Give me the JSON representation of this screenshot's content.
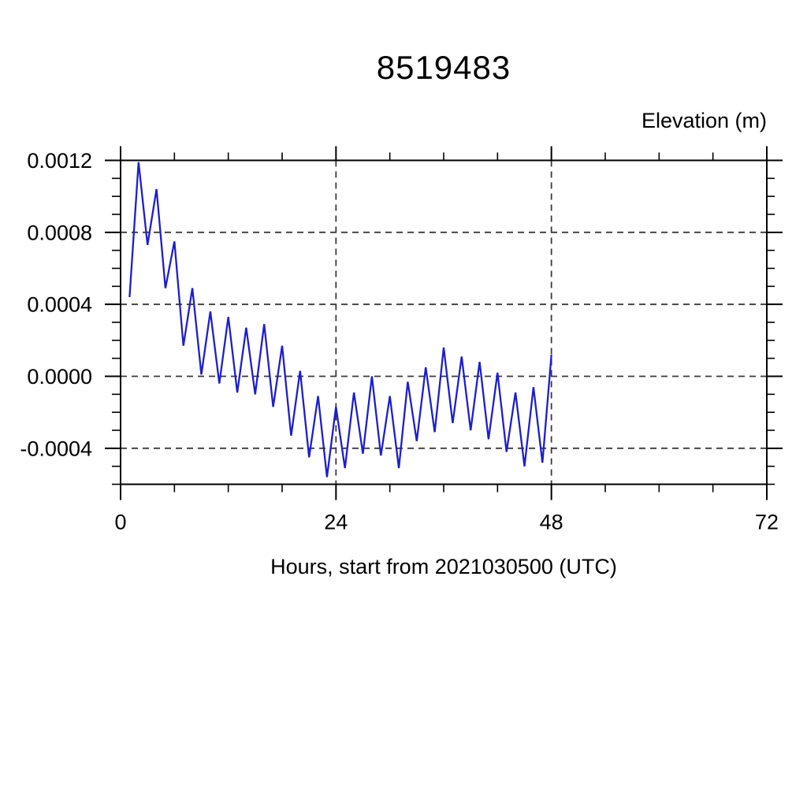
{
  "chart_data": {
    "type": "line",
    "title": "8519483",
    "ylabel": "Elevation (m)",
    "xlabel": "Hours, start from 2021030500 (UTC)",
    "line_color": "#1e1ecd",
    "grid_color": "#3a3a3a",
    "frame_color": "#000000",
    "xlim": [
      0,
      72
    ],
    "ylim": [
      -0.0006,
      0.0012
    ],
    "grid_on": true,
    "legend": "none",
    "xticks_major": [
      0,
      24,
      48,
      72
    ],
    "xtick_labels": [
      "0",
      "24",
      "48",
      "72"
    ],
    "xticks_minor": [
      6,
      12,
      18,
      30,
      36,
      42,
      54,
      60,
      66
    ],
    "yticks_major": [
      -0.0004,
      0.0,
      0.0004,
      0.0008,
      0.0012
    ],
    "ytick_labels": [
      "-0.0004",
      "0.0000",
      "0.0004",
      "0.0008",
      "0.0012"
    ],
    "yticks_minor": [
      -0.0006,
      -0.0005,
      -0.0003,
      -0.0002,
      -0.0001,
      0.0001,
      0.0002,
      0.0003,
      0.0005,
      0.0006,
      0.0007,
      0.0009,
      0.001,
      0.0011
    ],
    "grid_x": [
      24,
      48
    ],
    "grid_y": [
      -0.0004,
      0.0,
      0.0004,
      0.0008
    ],
    "x": [
      1,
      2,
      3,
      4,
      5,
      6,
      7,
      8,
      9,
      10,
      11,
      12,
      13,
      14,
      15,
      16,
      17,
      18,
      19,
      20,
      21,
      22,
      23,
      24,
      25,
      26,
      27,
      28,
      29,
      30,
      31,
      32,
      33,
      34,
      35,
      36,
      37,
      38,
      39,
      40,
      41,
      42,
      43,
      44,
      45,
      46,
      47,
      48
    ],
    "y": [
      0.00044,
      0.00119,
      0.00073,
      0.00104,
      0.00049,
      0.00075,
      0.00017,
      0.00049,
      1e-05,
      0.00036,
      -4e-05,
      0.00033,
      -9e-05,
      0.00027,
      -0.0001,
      0.00029,
      -0.00017,
      0.00017,
      -0.00033,
      3e-05,
      -0.00045,
      -0.00011,
      -0.00056,
      -0.00017,
      -0.00051,
      -9e-05,
      -0.00043,
      0.0,
      -0.00044,
      -0.00011,
      -0.00051,
      -3e-05,
      -0.00036,
      5e-05,
      -0.00031,
      0.00016,
      -0.00026,
      0.00011,
      -0.0003,
      8e-05,
      -0.00035,
      2e-05,
      -0.00042,
      -9e-05,
      -0.0005,
      -6e-05,
      -0.00048,
      0.00012
    ]
  }
}
